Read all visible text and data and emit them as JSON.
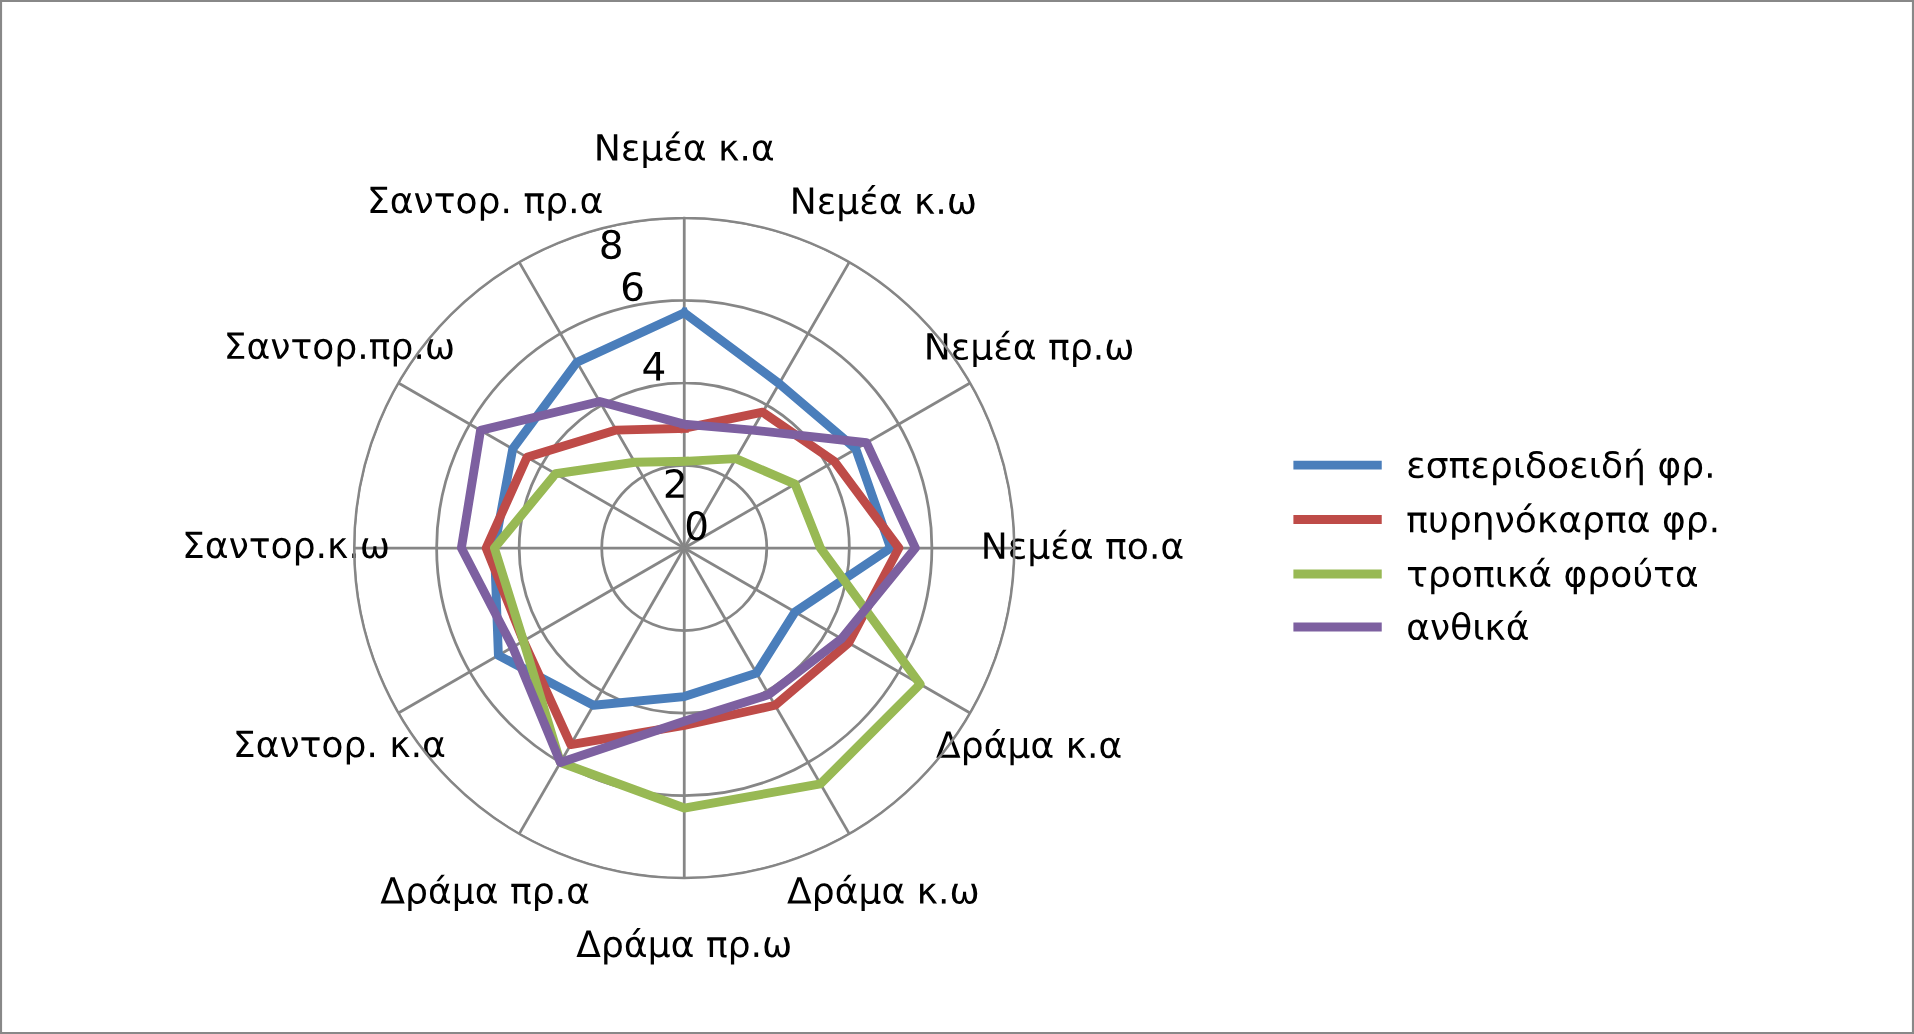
{
  "chart_data": {
    "type": "radar",
    "categories": [
      "Νεμέα κ.α",
      "Νεμέα κ.ω",
      "Νεμέα πρ.ω",
      "Νεμέα πο.α",
      "Δράμα κ.α",
      "Δράμα κ.ω",
      "Δράμα πρ.ω",
      "Δράμα πρ.α",
      "Σαντορ. κ.α",
      "Σαντορ.κ.ω",
      "Σαντορ.πρ.ω",
      "Σαντορ. πρ.α"
    ],
    "series": [
      {
        "name": "εσπεριδοειδή φρ.",
        "color": "#4a7ebb",
        "values": [
          5.7,
          4.6,
          4.8,
          5.0,
          3.1,
          3.5,
          3.6,
          4.4,
          5.2,
          4.6,
          4.8,
          5.2
        ]
      },
      {
        "name": "πυρηνόκαρπα φρ.",
        "color": "#be4b48",
        "values": [
          2.9,
          3.8,
          4.2,
          5.2,
          4.6,
          4.4,
          4.3,
          5.5,
          4.5,
          4.8,
          4.4,
          3.3
        ]
      },
      {
        "name": "τροπικά φρούτα",
        "color": "#98b954",
        "values": [
          2.1,
          2.5,
          3.1,
          3.3,
          6.6,
          6.6,
          6.3,
          6.0,
          4.5,
          4.6,
          3.6,
          2.4
        ]
      },
      {
        "name": "ανθικά",
        "color": "#7d60a0",
        "values": [
          3.0,
          3.3,
          5.1,
          5.6,
          4.4,
          4.1,
          4.2,
          6.0,
          4.8,
          5.4,
          5.7,
          4.1
        ]
      }
    ],
    "ylim": [
      0,
      8
    ],
    "yticks": [
      0,
      2,
      4,
      6,
      8
    ],
    "grid": true,
    "legend": "right",
    "marker": "none",
    "line_style": "solid"
  }
}
